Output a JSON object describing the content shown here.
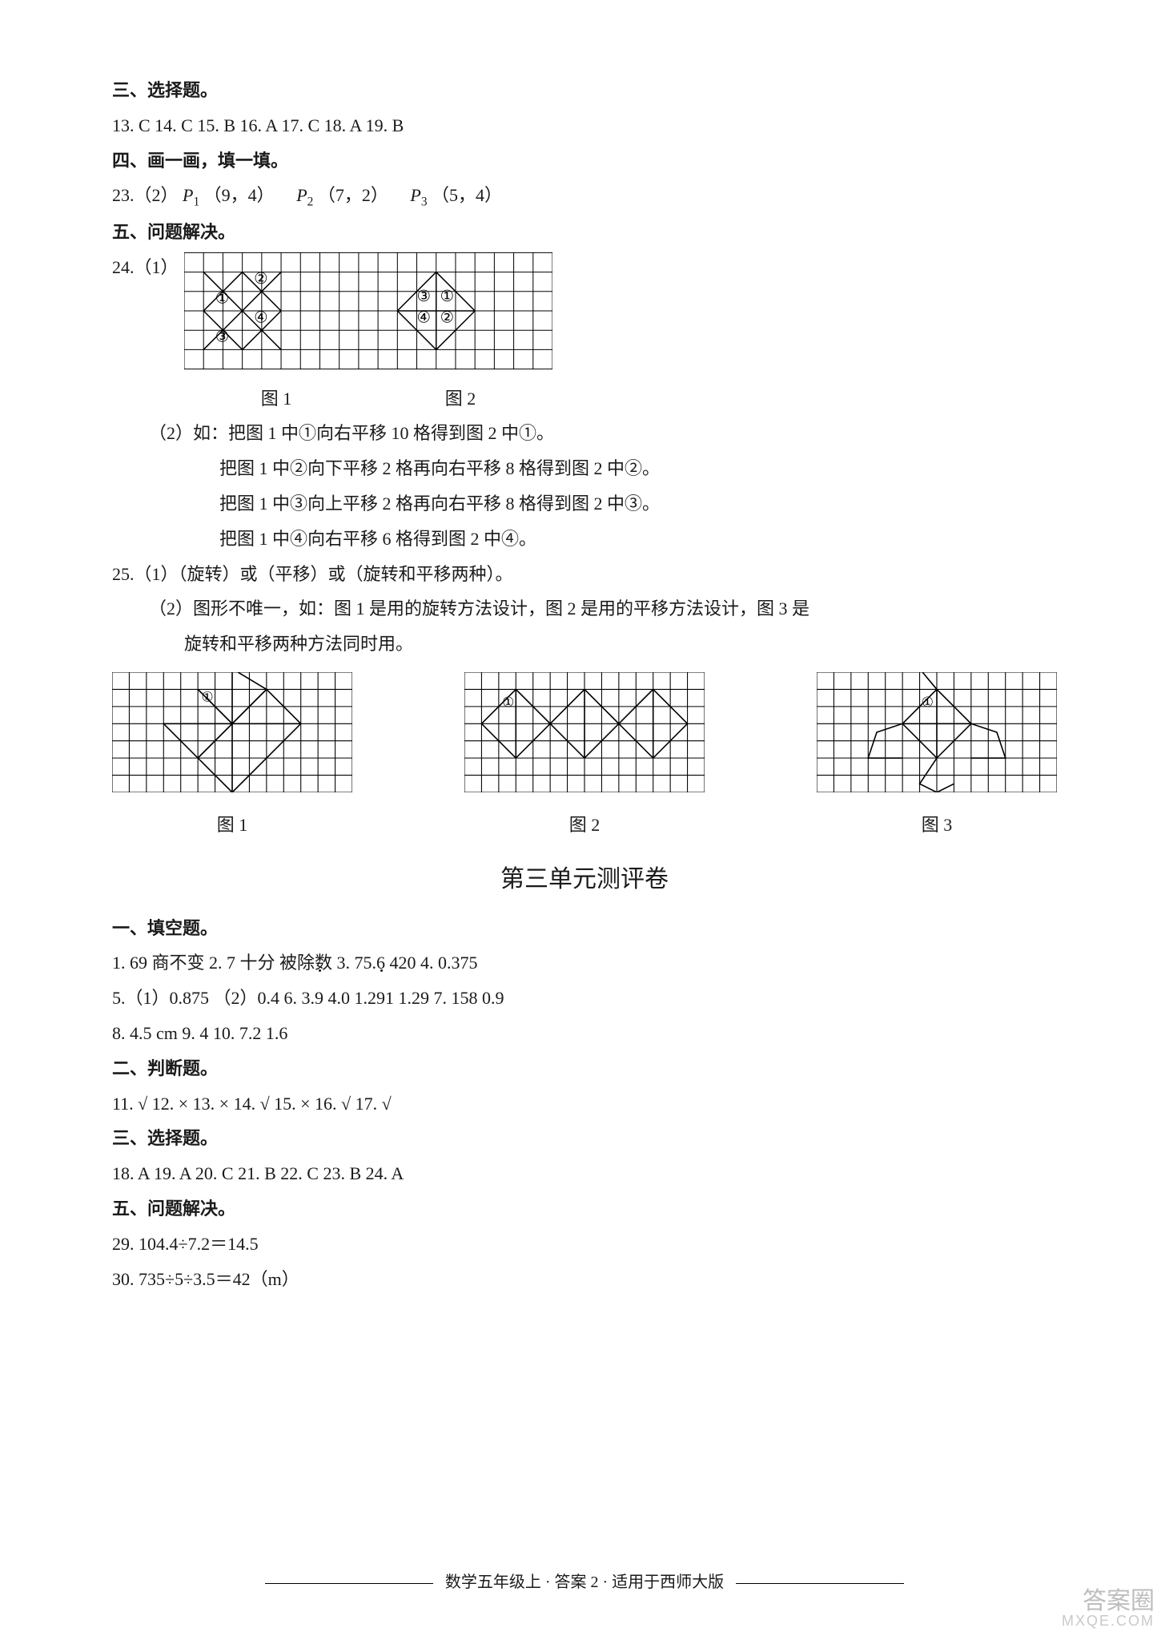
{
  "colors": {
    "text": "#1a1a1a",
    "bg": "#ffffff",
    "grid": "#000000",
    "watermark": "#bdbdbd"
  },
  "fonts": {
    "body_family": "SimSun/STSong",
    "body_size_pt": 16,
    "title_size_pt": 22,
    "footer_size_pt": 15
  },
  "s3": {
    "heading": "三、选择题。"
  },
  "q13": "13.  C   14.  C   15.  B   16.  A   17.  C   18.  A   19.  B",
  "s4": {
    "heading": "四、画一画，填一填。"
  },
  "q23": {
    "prefix": "23.（2）",
    "p1_label": "P",
    "p1_sub": "1",
    "p1_coord": "（9，4）",
    "p2_label": "P",
    "p2_sub": "2",
    "p2_coord": "（7，2）",
    "p3_label": "P",
    "p3_sub": "3",
    "p3_coord": "（5，4）"
  },
  "s5": {
    "heading": "五、问题解决。"
  },
  "q24": {
    "num": "24.（1）",
    "grid": {
      "type": "grid-diagram",
      "cols": 19,
      "rows": 6,
      "cell": 24,
      "grid_color": "#000000",
      "line_w": 1,
      "shapes": [
        {
          "type": "line",
          "pts": [
            [
              1,
              1
            ],
            [
              3,
              3
            ]
          ]
        },
        {
          "type": "line",
          "pts": [
            [
              3,
              1
            ],
            [
              1,
              3
            ]
          ]
        },
        {
          "type": "line",
          "pts": [
            [
              3,
              1
            ],
            [
              5,
              3
            ]
          ]
        },
        {
          "type": "line",
          "pts": [
            [
              5,
              1
            ],
            [
              3,
              3
            ]
          ]
        },
        {
          "type": "line",
          "pts": [
            [
              1,
              3
            ],
            [
              3,
              5
            ]
          ]
        },
        {
          "type": "line",
          "pts": [
            [
              3,
              3
            ],
            [
              1,
              5
            ]
          ]
        },
        {
          "type": "line",
          "pts": [
            [
              3,
              3
            ],
            [
              5,
              5
            ]
          ]
        },
        {
          "type": "line",
          "pts": [
            [
              5,
              3
            ],
            [
              3,
              5
            ]
          ]
        },
        {
          "type": "line",
          "pts": [
            [
              11,
              3
            ],
            [
              13,
              1
            ]
          ]
        },
        {
          "type": "line",
          "pts": [
            [
              13,
              1
            ],
            [
              15,
              3
            ]
          ]
        },
        {
          "type": "line",
          "pts": [
            [
              15,
              3
            ],
            [
              13,
              5
            ]
          ]
        },
        {
          "type": "line",
          "pts": [
            [
              13,
              5
            ],
            [
              11,
              3
            ]
          ]
        },
        {
          "type": "line",
          "pts": [
            [
              13,
              1
            ],
            [
              13,
              5
            ]
          ]
        },
        {
          "type": "line",
          "pts": [
            [
              11,
              3
            ],
            [
              15,
              3
            ]
          ]
        }
      ],
      "labels": [
        {
          "text": "②",
          "col": 3.6,
          "row": 1.6
        },
        {
          "text": "①",
          "col": 1.6,
          "row": 2.6
        },
        {
          "text": "④",
          "col": 3.6,
          "row": 3.6
        },
        {
          "text": "③",
          "col": 1.6,
          "row": 4.6
        },
        {
          "text": "③",
          "col": 12.0,
          "row": 2.5
        },
        {
          "text": "①",
          "col": 13.2,
          "row": 2.5
        },
        {
          "text": "④",
          "col": 12.0,
          "row": 3.6
        },
        {
          "text": "②",
          "col": 13.2,
          "row": 3.6
        }
      ]
    },
    "fig1_label": "图 1",
    "fig2_label": "图 2",
    "p2_prefix": "（2）如：",
    "l1": "把图 1 中①向右平移 10 格得到图 2 中①。",
    "l2": "把图 1 中②向下平移 2 格再向右平移 8 格得到图 2 中②。",
    "l3": "把图 1 中③向上平移 2 格再向右平移 8 格得到图 2 中③。",
    "l4": "把图 1 中④向右平移 6 格得到图 2 中④。"
  },
  "q25": {
    "l1": "25.（1）（旋转）或（平移）或（旋转和平移两种）。",
    "l2a": "（2）图形不唯一，如：图 1 是用的旋转方法设计，图 2 是用的平移方法设计，图 3 是",
    "l2b": "旋转和平移两种方法同时用。",
    "figs": {
      "type": "grid-diagram-triple",
      "cell": 20,
      "size": {
        "cols": 14,
        "rows": 7
      },
      "grid_color": "#000000",
      "line_w": 1,
      "figA": {
        "shapes": [
          {
            "type": "poly",
            "pts": [
              [
                5,
                1
              ],
              [
                7,
                3
              ],
              [
                9,
                1
              ],
              [
                7,
                -0.2
              ]
            ],
            "close": false
          },
          {
            "type": "poly",
            "pts": [
              [
                7,
                3
              ],
              [
                5,
                5
              ],
              [
                7,
                7
              ],
              [
                9,
                5
              ]
            ],
            "close": false
          },
          {
            "type": "poly",
            "pts": [
              [
                3,
                3
              ],
              [
                5,
                5
              ],
              [
                7,
                3
              ],
              [
                5,
                1
              ]
            ],
            "close": false
          },
          {
            "type": "poly",
            "pts": [
              [
                7,
                3
              ],
              [
                9,
                1
              ],
              [
                11,
                3
              ],
              [
                9,
                5
              ]
            ],
            "close": false
          },
          {
            "type": "line",
            "pts": [
              [
                7,
                0
              ],
              [
                7,
                7
              ]
            ]
          },
          {
            "type": "line",
            "pts": [
              [
                3,
                3
              ],
              [
                11,
                3
              ]
            ]
          }
        ],
        "labels": [
          {
            "text": "①",
            "col": 5.2,
            "row": 1.7
          }
        ]
      },
      "figB": {
        "shapes": [
          {
            "type": "poly",
            "pts": [
              [
                1,
                3
              ],
              [
                3,
                1
              ],
              [
                5,
                3
              ],
              [
                3,
                5
              ]
            ],
            "close": true
          },
          {
            "type": "poly",
            "pts": [
              [
                5,
                3
              ],
              [
                7,
                1
              ],
              [
                9,
                3
              ],
              [
                7,
                5
              ]
            ],
            "close": true
          },
          {
            "type": "poly",
            "pts": [
              [
                9,
                3
              ],
              [
                11,
                1
              ],
              [
                13,
                3
              ],
              [
                11,
                5
              ]
            ],
            "close": true
          },
          {
            "type": "line",
            "pts": [
              [
                3,
                1
              ],
              [
                3,
                5
              ]
            ]
          },
          {
            "type": "line",
            "pts": [
              [
                7,
                1
              ],
              [
                7,
                5
              ]
            ]
          },
          {
            "type": "line",
            "pts": [
              [
                11,
                1
              ],
              [
                11,
                5
              ]
            ]
          }
        ],
        "labels": [
          {
            "text": "①",
            "col": 2.2,
            "row": 2.0
          }
        ]
      },
      "figC": {
        "shapes": [
          {
            "type": "poly",
            "pts": [
              [
                5,
                3
              ],
              [
                7,
                1
              ],
              [
                9,
                3
              ],
              [
                7,
                5
              ]
            ],
            "close": true
          },
          {
            "type": "poly",
            "pts": [
              [
                7,
                1
              ],
              [
                6,
                -0.2
              ],
              [
                7,
                -1
              ],
              [
                8,
                -0.2
              ]
            ],
            "close": false
          },
          {
            "type": "poly",
            "pts": [
              [
                5,
                3
              ],
              [
                3.5,
                3.5
              ],
              [
                3,
                5
              ],
              [
                5,
                5
              ]
            ],
            "close": false
          },
          {
            "type": "poly",
            "pts": [
              [
                9,
                3
              ],
              [
                10.5,
                3.5
              ],
              [
                11,
                5
              ],
              [
                9,
                5
              ]
            ],
            "close": false
          },
          {
            "type": "poly",
            "pts": [
              [
                7,
                5
              ],
              [
                6,
                6.5
              ],
              [
                7,
                7
              ],
              [
                8,
                6.5
              ]
            ],
            "close": false
          },
          {
            "type": "line",
            "pts": [
              [
                7,
                1
              ],
              [
                7,
                5
              ]
            ]
          },
          {
            "type": "line",
            "pts": [
              [
                5,
                3
              ],
              [
                9,
                3
              ]
            ]
          }
        ],
        "labels": [
          {
            "text": "①",
            "col": 6.1,
            "row": 2.0
          }
        ]
      }
    },
    "figA_label": "图 1",
    "figB_label": "图 2",
    "figC_label": "图 3"
  },
  "unit3_title": "第三单元测评卷",
  "u3s1": {
    "heading": "一、填空题。"
  },
  "u3q1": "1.  69   商不变   2.  7   十分   被除数   3.  75.6   420   4.  0.375",
  "u3q5a": "5.（1）0.875   （2）0.4   6.  3.",
  "u3q5b": "   4.0   1.2",
  "u3q5c": "1   1.29   7.  158   0.9",
  "u3q8": "8.  4.5 cm   9.  4   10.  7.2   1.6",
  "u3s2": {
    "heading": "二、判断题。"
  },
  "u3q11": "11.  √   12.  ×   13.  ×   14.  √   15.  ×   16.  √   17.  √",
  "u3s3": {
    "heading": "三、选择题。"
  },
  "u3q18": "18.  A   19.  A   20.  C   21.  B   22.  C   23.  B   24.  A",
  "u3s5": {
    "heading": "五、问题解决。"
  },
  "u3q29": "29.  104.4÷7.2＝14.5",
  "u3q30": "30.  735÷5÷3.5＝42（m）",
  "footer": "数学五年级上 · 答案 2  · 适用于西师大版",
  "watermark": {
    "main": "答案圈",
    "sub": "MXQE.COM"
  }
}
